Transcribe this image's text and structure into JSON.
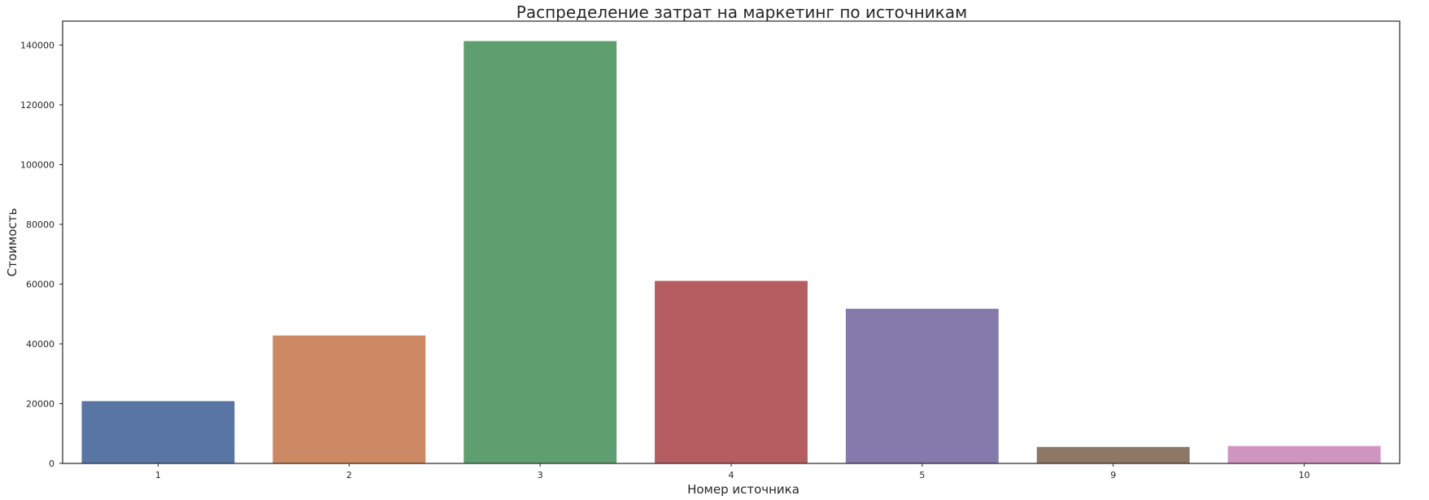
{
  "chart_data": {
    "type": "bar",
    "title": "Распределение затрат на маркетинг по источникам",
    "xlabel": "Номер источника",
    "ylabel": "Стоимость",
    "categories": [
      "1",
      "2",
      "3",
      "4",
      "5",
      "9",
      "10"
    ],
    "values": [
      20833,
      42806,
      141322,
      61073,
      51757,
      5518,
      5822
    ],
    "colors": [
      "#5975a4",
      "#cc8963",
      "#5f9e6e",
      "#b55d60",
      "#857aab",
      "#8d7866",
      "#d095bf"
    ],
    "ylim": [
      0,
      148000
    ],
    "yticks": [
      0,
      20000,
      40000,
      60000,
      80000,
      100000,
      120000,
      140000
    ],
    "ytick_labels": [
      "0",
      "20000",
      "40000",
      "60000",
      "80000",
      "100000",
      "120000",
      "140000"
    ],
    "grid": false,
    "legend": "none"
  }
}
